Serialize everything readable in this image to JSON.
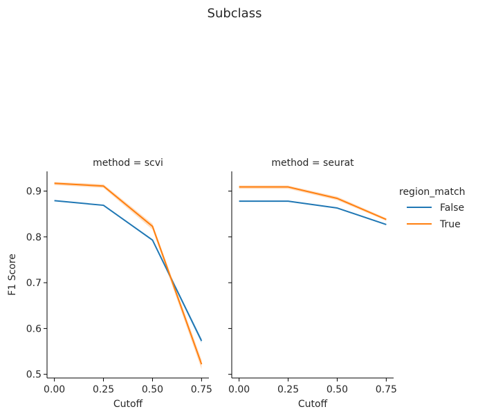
{
  "figure": {
    "title": "Subclass"
  },
  "legend": {
    "title": "region_match",
    "items": [
      {
        "label": "False",
        "color": "#1f77b4"
      },
      {
        "label": "True",
        "color": "#ff7f0e"
      }
    ],
    "placement": "right"
  },
  "chart_data": [
    {
      "type": "line",
      "title": "method = scvi",
      "xlabel": "Cutoff",
      "ylabel": "F1 Score",
      "x": [
        0.0,
        0.25,
        0.5,
        0.75
      ],
      "xticks": [
        "0.00",
        "0.25",
        "0.50",
        "0.75"
      ],
      "yticks": [
        "0.5",
        "0.6",
        "0.7",
        "0.8",
        "0.9"
      ],
      "xlim": [
        -0.0375,
        0.7875
      ],
      "ylim": [
        0.492,
        0.943
      ],
      "grid": false,
      "series": [
        {
          "name": "False",
          "color": "#1f77b4",
          "values": [
            0.879,
            0.869,
            0.793,
            0.573
          ],
          "ci_low": [
            0.878,
            0.868,
            0.791,
            0.568
          ],
          "ci_high": [
            0.88,
            0.87,
            0.795,
            0.578
          ]
        },
        {
          "name": "True",
          "color": "#ff7f0e",
          "values": [
            0.917,
            0.911,
            0.823,
            0.522
          ],
          "ci_low": [
            0.913,
            0.907,
            0.816,
            0.511
          ],
          "ci_high": [
            0.92,
            0.915,
            0.829,
            0.532
          ]
        }
      ]
    },
    {
      "type": "line",
      "title": "method = seurat",
      "xlabel": "Cutoff",
      "ylabel": "",
      "x": [
        0.0,
        0.25,
        0.5,
        0.75
      ],
      "xticks": [
        "0.00",
        "0.25",
        "0.50",
        "0.75"
      ],
      "yticks": [],
      "xlim": [
        -0.0375,
        0.7875
      ],
      "ylim": [
        0.492,
        0.943
      ],
      "grid": false,
      "series": [
        {
          "name": "False",
          "color": "#1f77b4",
          "values": [
            0.878,
            0.878,
            0.863,
            0.827
          ],
          "ci_low": [
            0.877,
            0.877,
            0.862,
            0.826
          ],
          "ci_high": [
            0.879,
            0.879,
            0.864,
            0.828
          ]
        },
        {
          "name": "True",
          "color": "#ff7f0e",
          "values": [
            0.909,
            0.909,
            0.884,
            0.838
          ],
          "ci_low": [
            0.905,
            0.905,
            0.88,
            0.835
          ],
          "ci_high": [
            0.912,
            0.912,
            0.888,
            0.841
          ]
        }
      ]
    }
  ]
}
